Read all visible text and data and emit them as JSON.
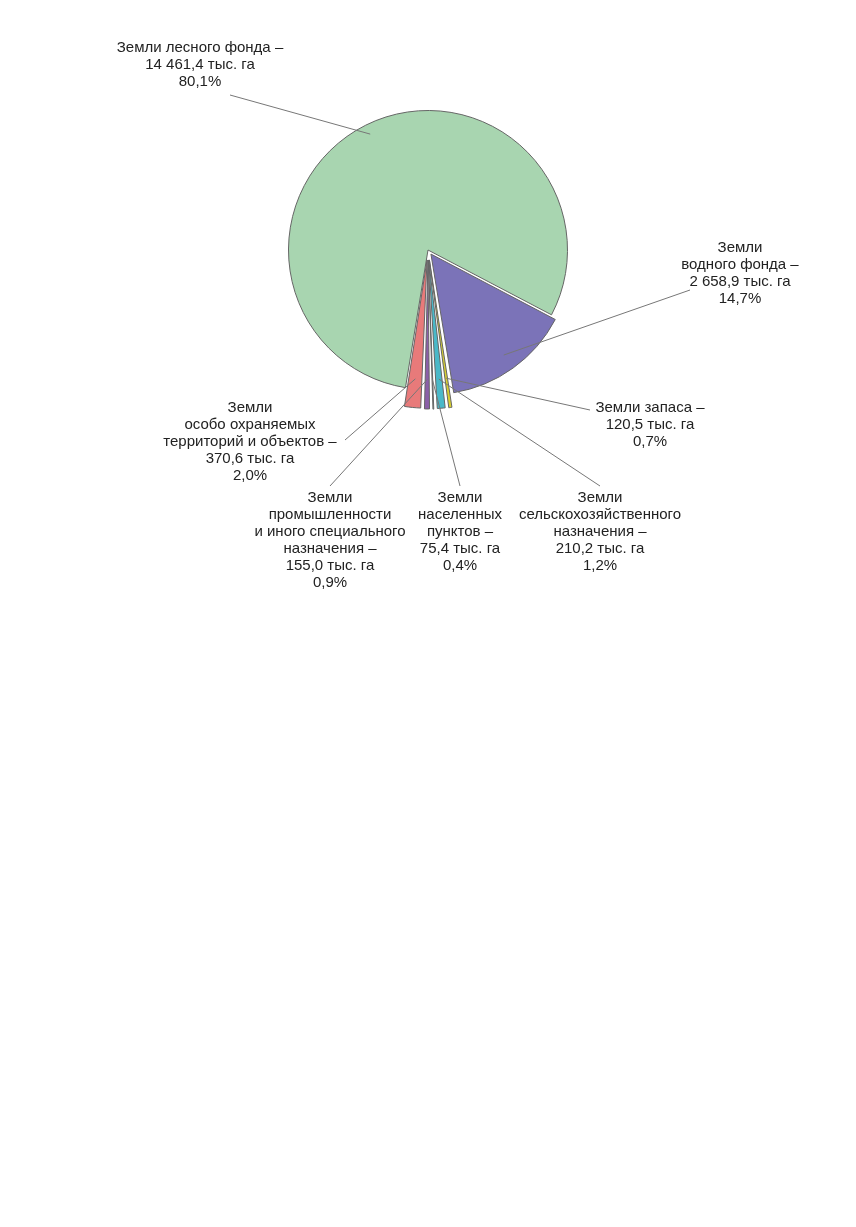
{
  "chart_data": {
    "type": "pie",
    "categories": [
      "Земли лесного фонда –",
      "Земли\nводного фонда –",
      "Земли запаса –",
      "Земли\nсельскохозяйственного\nназначения –",
      "Земли\nнаселенных\nпунктов –",
      "Земли\nпромышленности\nи иного специального\nназначения –",
      "Земли\nособо охраняемых\nтерриторий и объектов –"
    ],
    "values": [
      14461.4,
      2658.9,
      120.5,
      210.2,
      75.4,
      155.0,
      370.6
    ],
    "value_labels": [
      "14 461,4 тыс. га\n80,1%",
      "2 658,9 тыс. га\n14,7%",
      "120,5 тыс. га\n0,7%",
      "210,2 тыс. га\n1,2%",
      "75,4 тыс. га\n0,4%",
      "155,0 тыс. га\n0,9%",
      "370,6 тыс. га\n2,0%"
    ],
    "colors": [
      "#a8d5b0",
      "#7b73b8",
      "#d8d030",
      "#4ab8c8",
      "#a8a8a8",
      "#8b5fa8",
      "#e87a7a"
    ],
    "legend": false
  }
}
